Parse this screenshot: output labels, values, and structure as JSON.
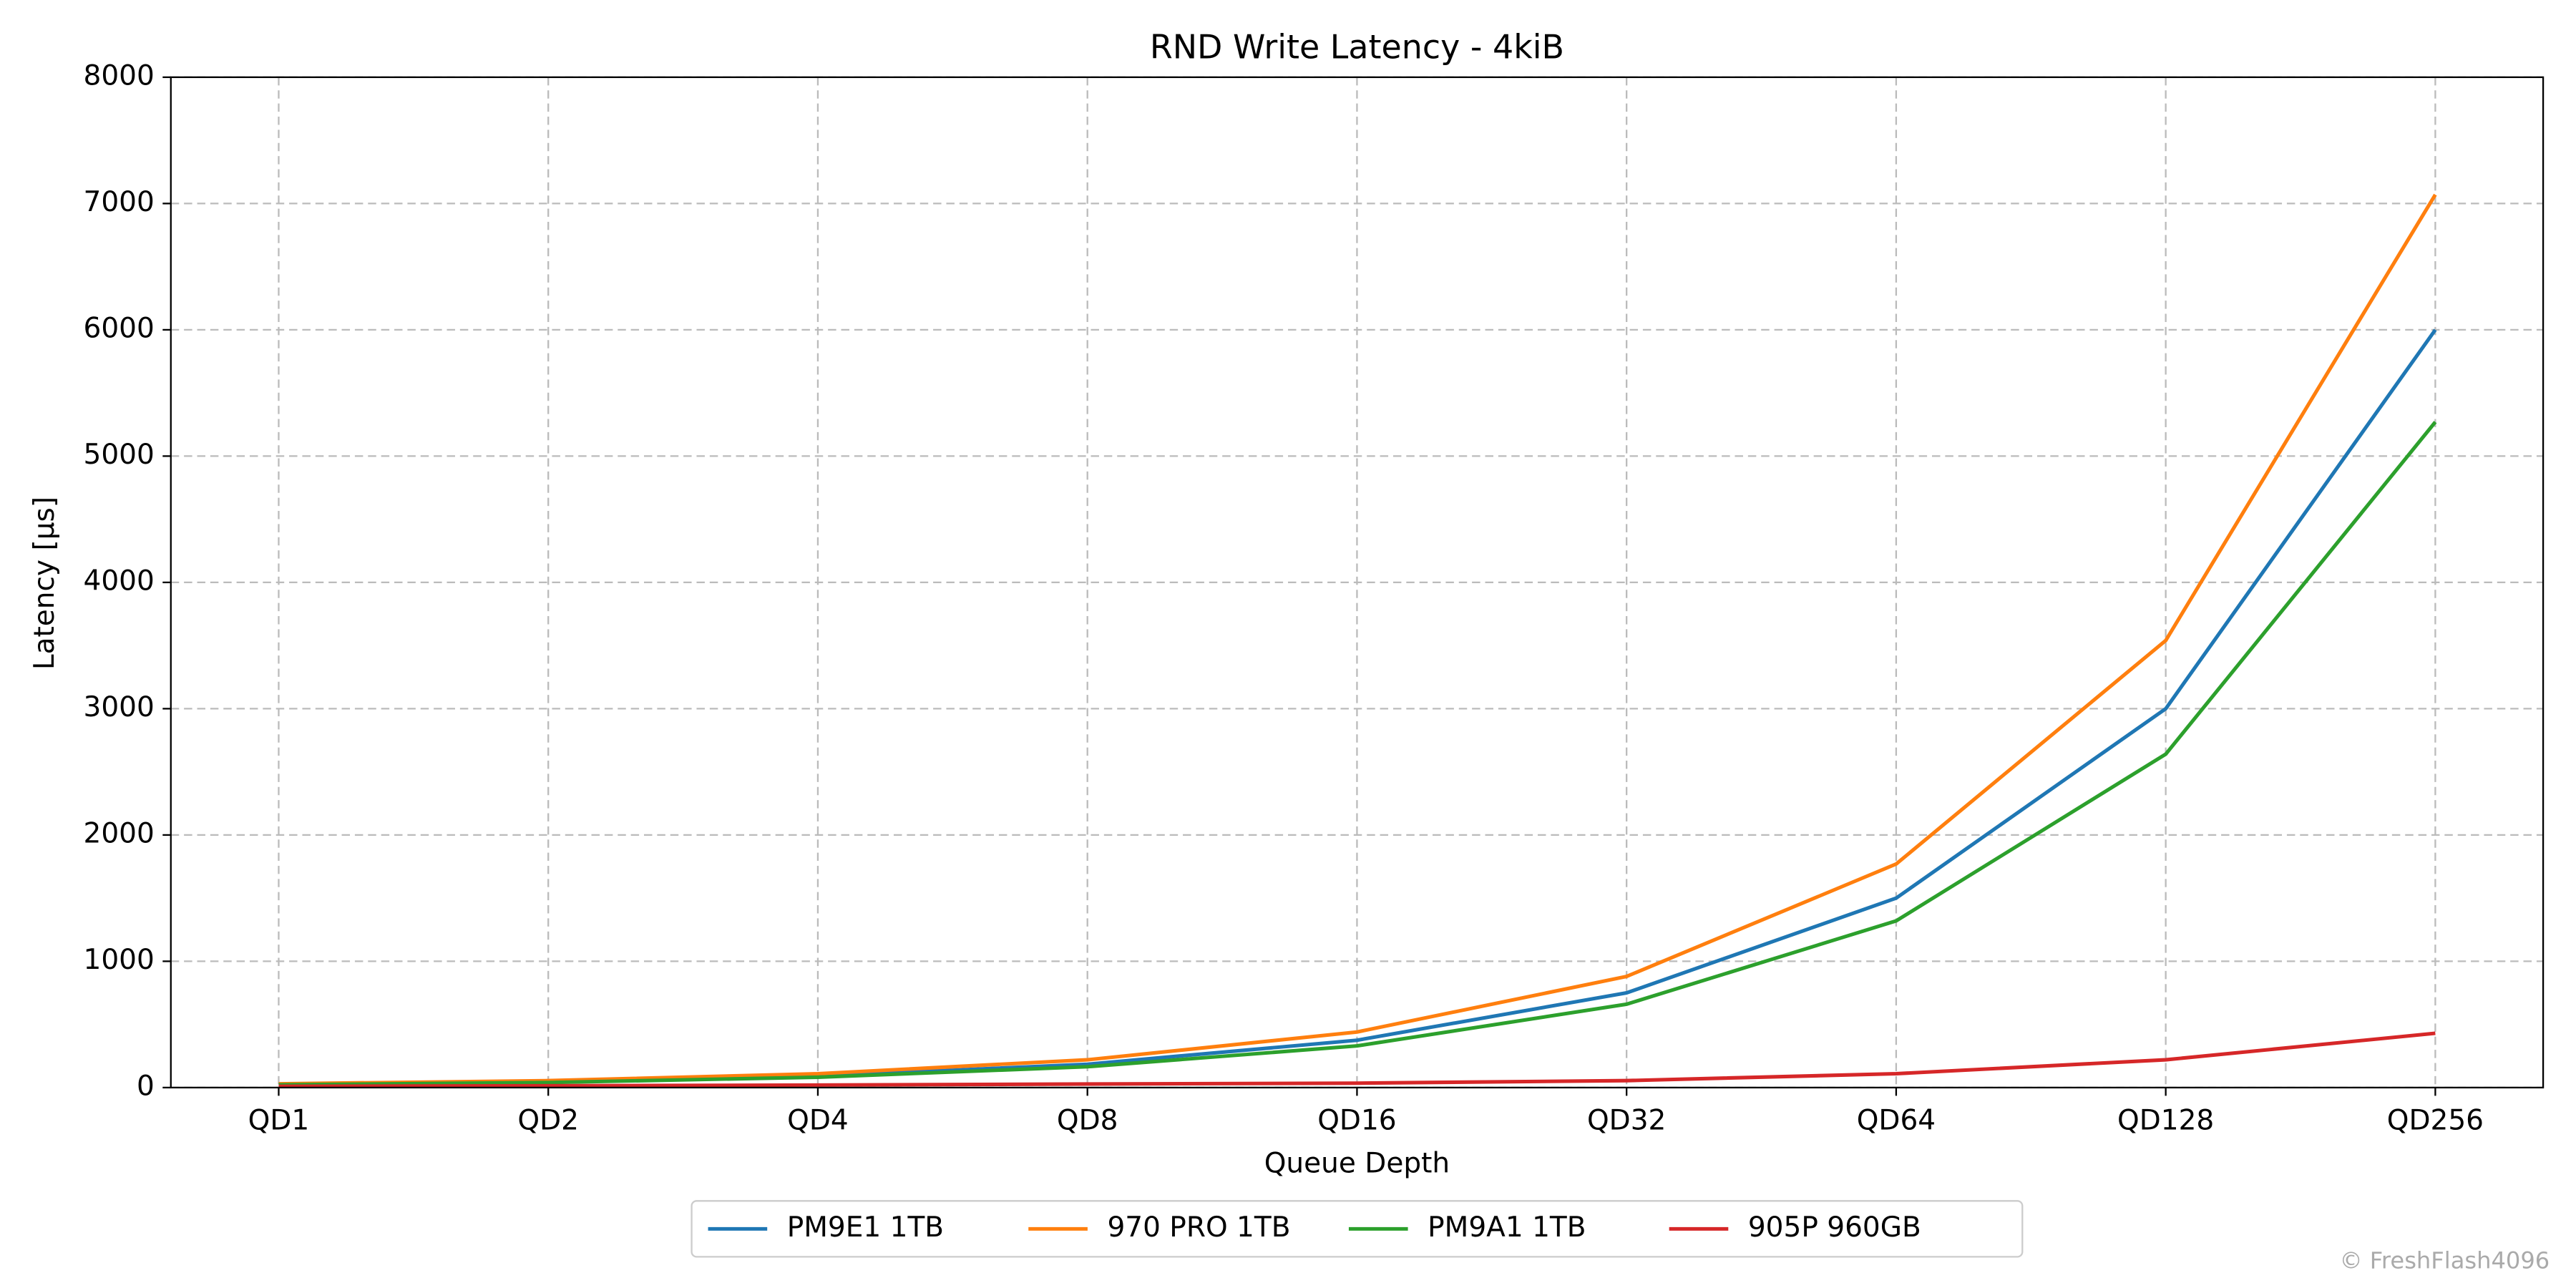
{
  "chart_data": {
    "type": "line",
    "title": "RND Write Latency - 4kiB",
    "x_label": "Queue Depth",
    "y_label": "Latency [µs]",
    "categories": [
      "QD1",
      "QD2",
      "QD4",
      "QD8",
      "QD16",
      "QD32",
      "QD64",
      "QD128",
      "QD256"
    ],
    "series": [
      {
        "name": "PM9E1 1TB",
        "color": "#1f77b4",
        "values": [
          25,
          45,
          90,
          185,
          375,
          750,
          1500,
          3000,
          6000
        ]
      },
      {
        "name": "970 PRO 1TB",
        "color": "#ff7f0e",
        "values": [
          30,
          55,
          110,
          220,
          440,
          880,
          1770,
          3540,
          7070
        ]
      },
      {
        "name": "PM9A1 1TB",
        "color": "#2ca02c",
        "values": [
          22,
          40,
          82,
          165,
          330,
          660,
          1320,
          2640,
          5270
        ]
      },
      {
        "name": "905P 960GB",
        "color": "#d62728",
        "values": [
          10,
          14,
          20,
          28,
          35,
          55,
          110,
          220,
          430
        ]
      }
    ],
    "ylim": [
      0,
      8000
    ],
    "yticks": [
      0,
      1000,
      2000,
      3000,
      4000,
      5000,
      6000,
      7000,
      8000
    ],
    "grid": true,
    "legend": "bottom",
    "watermark": "© FreshFlash4096"
  }
}
